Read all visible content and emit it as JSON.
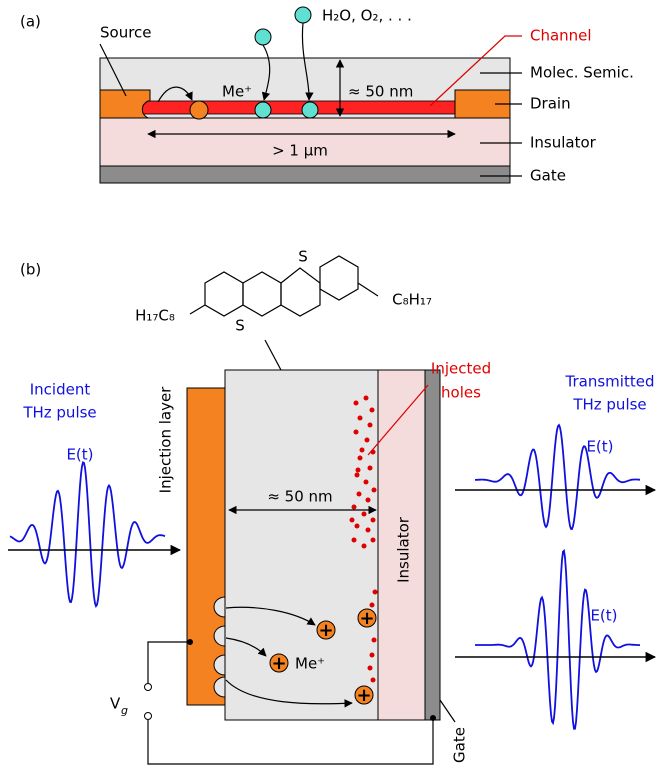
{
  "panel_a": {
    "label": "(a)",
    "source": "Source",
    "molecules": "H₂O, O₂, . . .",
    "channel": "Channel",
    "ion": "Me⁺",
    "thickness": "≈ 50 nm",
    "length": "> 1 μm",
    "layers": [
      "Molec. Semic.",
      "Drain",
      "Insulator",
      "Gate"
    ]
  },
  "panel_b": {
    "label": "(b)",
    "substituent_left": "H₁₇C₈",
    "substituent_right": "C₈H₁₇",
    "sulfur": [
      "S",
      "S"
    ],
    "injection_layer": "Injection layer",
    "injected_holes": [
      "Injected",
      "holes"
    ],
    "incident_pulse": [
      "Incident",
      "THz pulse"
    ],
    "transmitted_pulse": [
      "Transmitted",
      "THz pulse"
    ],
    "field": [
      "E(t)",
      "E(t)",
      "E(t)"
    ],
    "thickness": "≈ 50 nm",
    "insulator": "Insulator",
    "ion": "Me⁺",
    "voltage": {
      "symbol": "V",
      "subscript": "g"
    },
    "gate": "Gate",
    "hole_symbol": "+"
  }
}
